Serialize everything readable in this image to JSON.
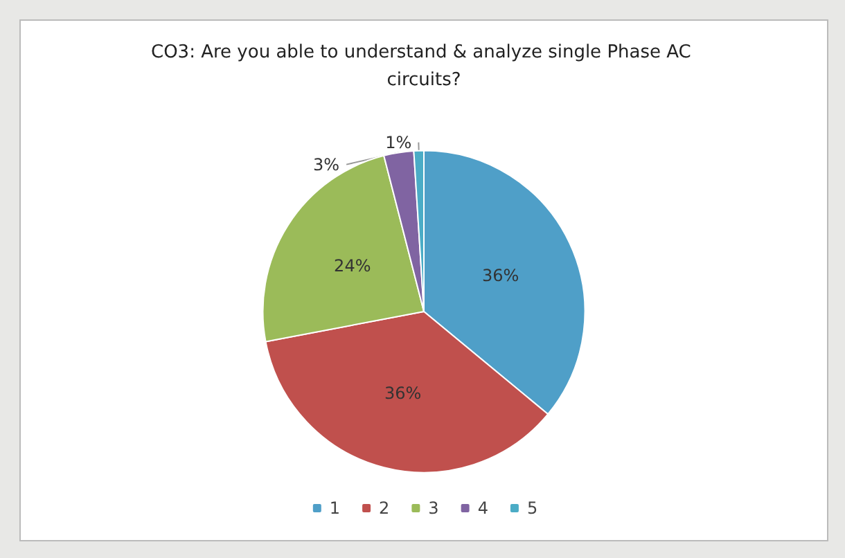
{
  "chart_data": {
    "type": "pie",
    "title": "CO3: Are you able to understand & analyze single Phase AC circuits?",
    "categories": [
      "1",
      "2",
      "3",
      "4",
      "5"
    ],
    "values": [
      36,
      36,
      24,
      3,
      1
    ],
    "colors": [
      "#4f9fc8",
      "#c0504d",
      "#9bbb59",
      "#8064a2",
      "#4bacc6"
    ],
    "value_labels": [
      "36%",
      "36%",
      "24%",
      "3%",
      "1%"
    ],
    "legend": "bottom"
  }
}
